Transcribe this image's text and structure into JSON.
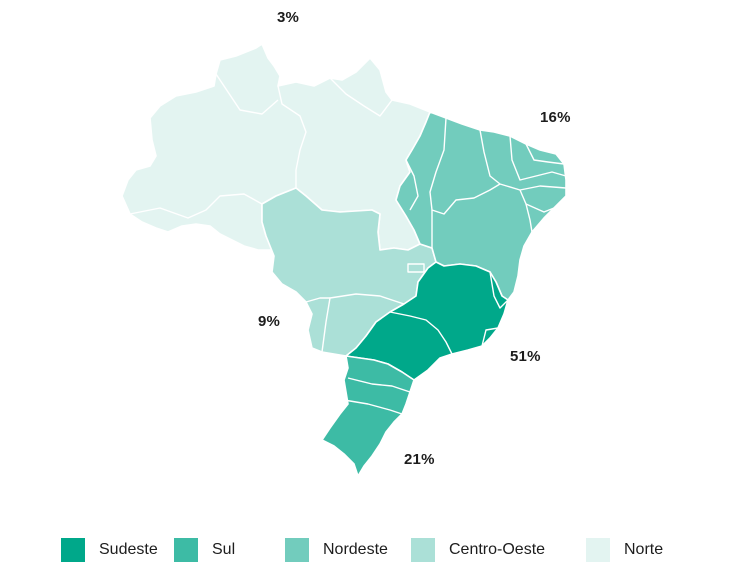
{
  "regions": [
    {
      "key": "sudeste",
      "name": "Sudeste",
      "percent": "51%",
      "share": 51,
      "color": "#00a88a"
    },
    {
      "key": "sul",
      "name": "Sul",
      "percent": "21%",
      "share": 21,
      "color": "#3dbba5"
    },
    {
      "key": "nordeste",
      "name": "Nordeste",
      "percent": "16%",
      "share": 16,
      "color": "#72ccbd"
    },
    {
      "key": "centro_oeste",
      "name": "Centro-Oeste",
      "percent": "9%",
      "share": 9,
      "color": "#abe0d7"
    },
    {
      "key": "norte",
      "name": "Norte",
      "percent": "3%",
      "share": 3,
      "color": "#e3f4f1"
    }
  ]
}
